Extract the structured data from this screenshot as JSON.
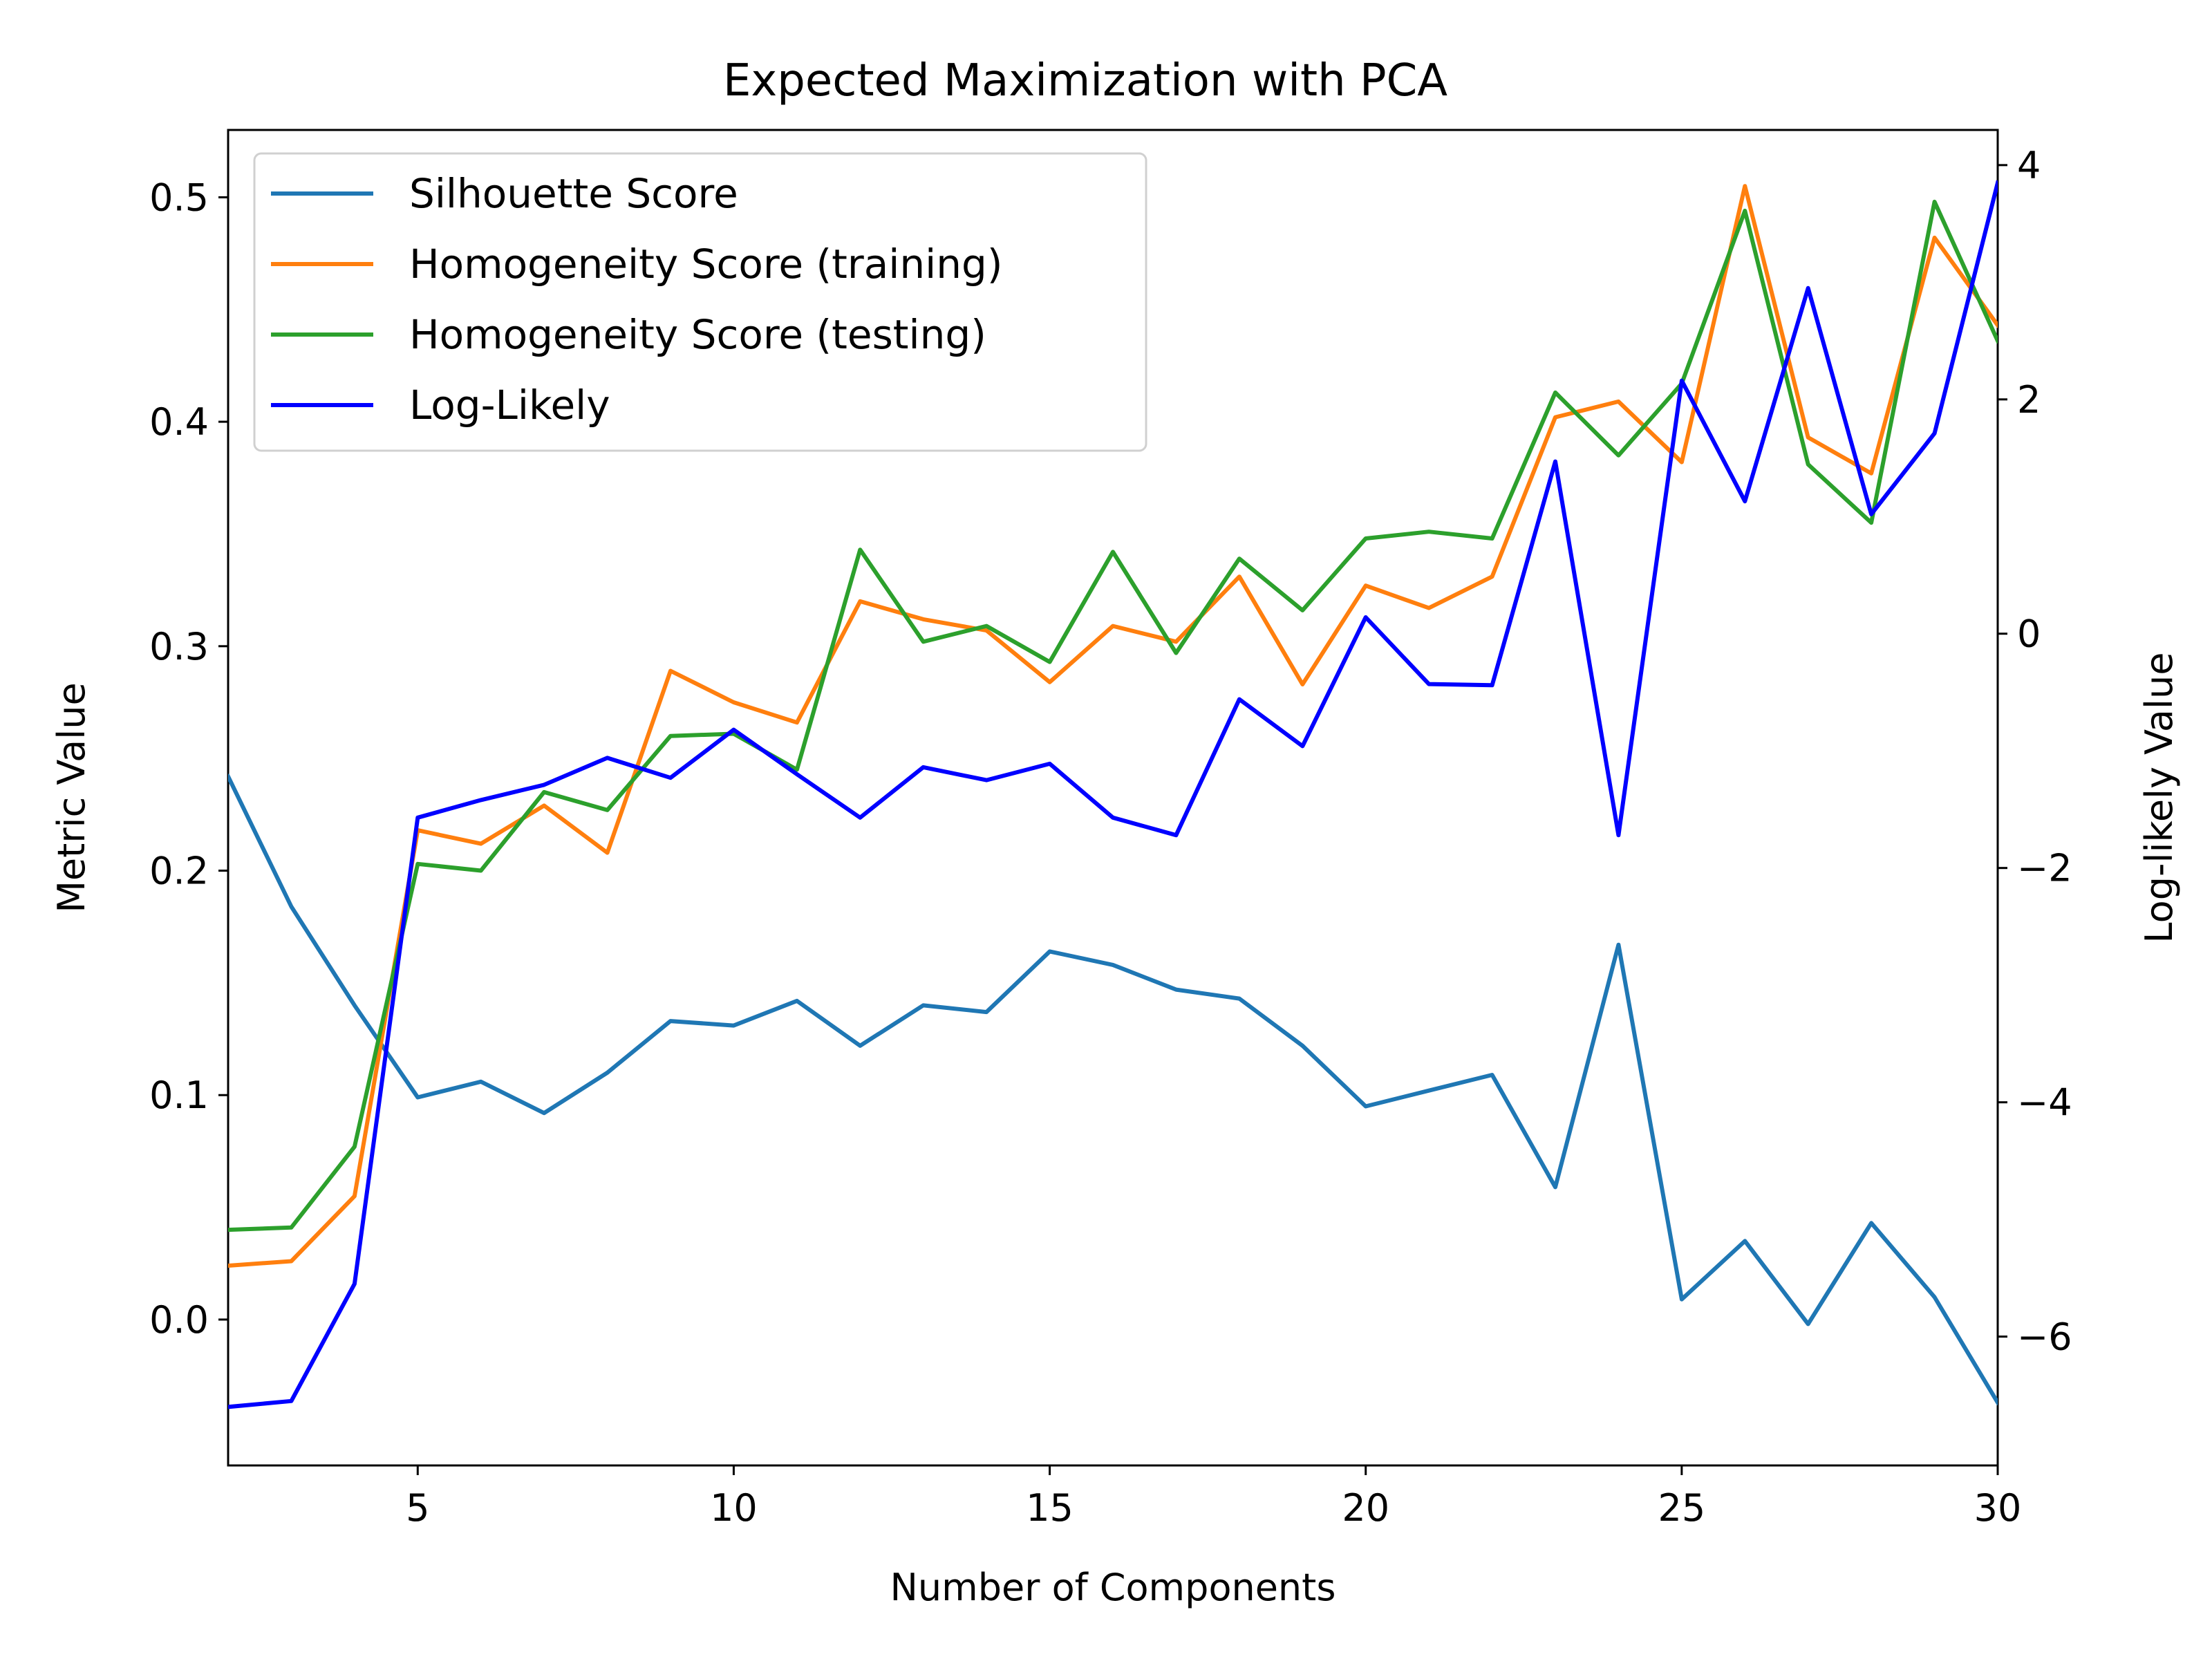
{
  "chart_data": {
    "type": "line",
    "title": "Expected Maximization with PCA",
    "xlabel": "Number of Components",
    "ylabel": "Metric Value",
    "y2label": "Log-likely Value",
    "xlim": [
      2,
      30
    ],
    "ylim": [
      -0.065,
      0.53
    ],
    "y2lim": [
      -7.1,
      4.3
    ],
    "xticks": [
      5,
      10,
      15,
      20,
      25,
      30
    ],
    "yticks": [
      0.0,
      0.1,
      0.2,
      0.3,
      0.4,
      0.5
    ],
    "ytick_labels": [
      "0.0",
      "0.1",
      "0.2",
      "0.3",
      "0.4",
      "0.5"
    ],
    "y2ticks": [
      -6,
      -4,
      -2,
      0,
      2,
      4
    ],
    "y2tick_labels": [
      "−6",
      "−4",
      "−2",
      "0",
      "2",
      "4"
    ],
    "legend_position": "upper-left",
    "grid": false,
    "x": [
      2,
      3,
      4,
      5,
      6,
      7,
      8,
      9,
      10,
      11,
      12,
      13,
      14,
      15,
      16,
      17,
      18,
      19,
      20,
      21,
      22,
      23,
      24,
      25,
      26,
      27,
      28,
      29,
      30
    ],
    "series": [
      {
        "name": "Silhouette Score",
        "axis": "left",
        "color": "#1f77b4",
        "values": [
          0.242,
          0.184,
          0.14,
          0.099,
          0.106,
          0.092,
          0.11,
          0.133,
          0.131,
          0.142,
          0.122,
          0.14,
          0.137,
          0.164,
          0.158,
          0.147,
          0.143,
          0.122,
          0.095,
          0.102,
          0.109,
          0.059,
          0.167,
          0.009,
          0.035,
          -0.002,
          0.043,
          0.01,
          -0.037
        ]
      },
      {
        "name": "Homogeneity Score (training)",
        "axis": "left",
        "color": "#ff7f0e",
        "values": [
          0.024,
          0.026,
          0.055,
          0.218,
          0.212,
          0.229,
          0.208,
          0.289,
          0.275,
          0.266,
          0.32,
          0.312,
          0.307,
          0.284,
          0.309,
          0.302,
          0.331,
          0.283,
          0.327,
          0.317,
          0.331,
          0.402,
          0.409,
          0.382,
          0.505,
          0.393,
          0.377,
          0.482,
          0.443
        ]
      },
      {
        "name": "Homogeneity Score (testing)",
        "axis": "left",
        "color": "#2ca02c",
        "values": [
          0.04,
          0.041,
          0.077,
          0.203,
          0.2,
          0.235,
          0.227,
          0.26,
          0.261,
          0.245,
          0.343,
          0.302,
          0.309,
          0.293,
          0.342,
          0.297,
          0.339,
          0.316,
          0.348,
          0.351,
          0.348,
          0.413,
          0.385,
          0.417,
          0.494,
          0.381,
          0.355,
          0.498,
          0.436
        ]
      },
      {
        "name": "Log-Likely",
        "axis": "right",
        "color": "#0000ff",
        "values": [
          -6.6,
          -6.55,
          -5.55,
          -1.57,
          -1.42,
          -1.29,
          -1.06,
          -1.23,
          -0.82,
          -1.2,
          -1.57,
          -1.14,
          -1.25,
          -1.11,
          -1.57,
          -1.72,
          -0.56,
          -0.96,
          0.14,
          -0.43,
          -0.44,
          1.47,
          -1.72,
          2.16,
          1.13,
          2.95,
          1.02,
          1.71,
          3.85
        ]
      }
    ]
  }
}
